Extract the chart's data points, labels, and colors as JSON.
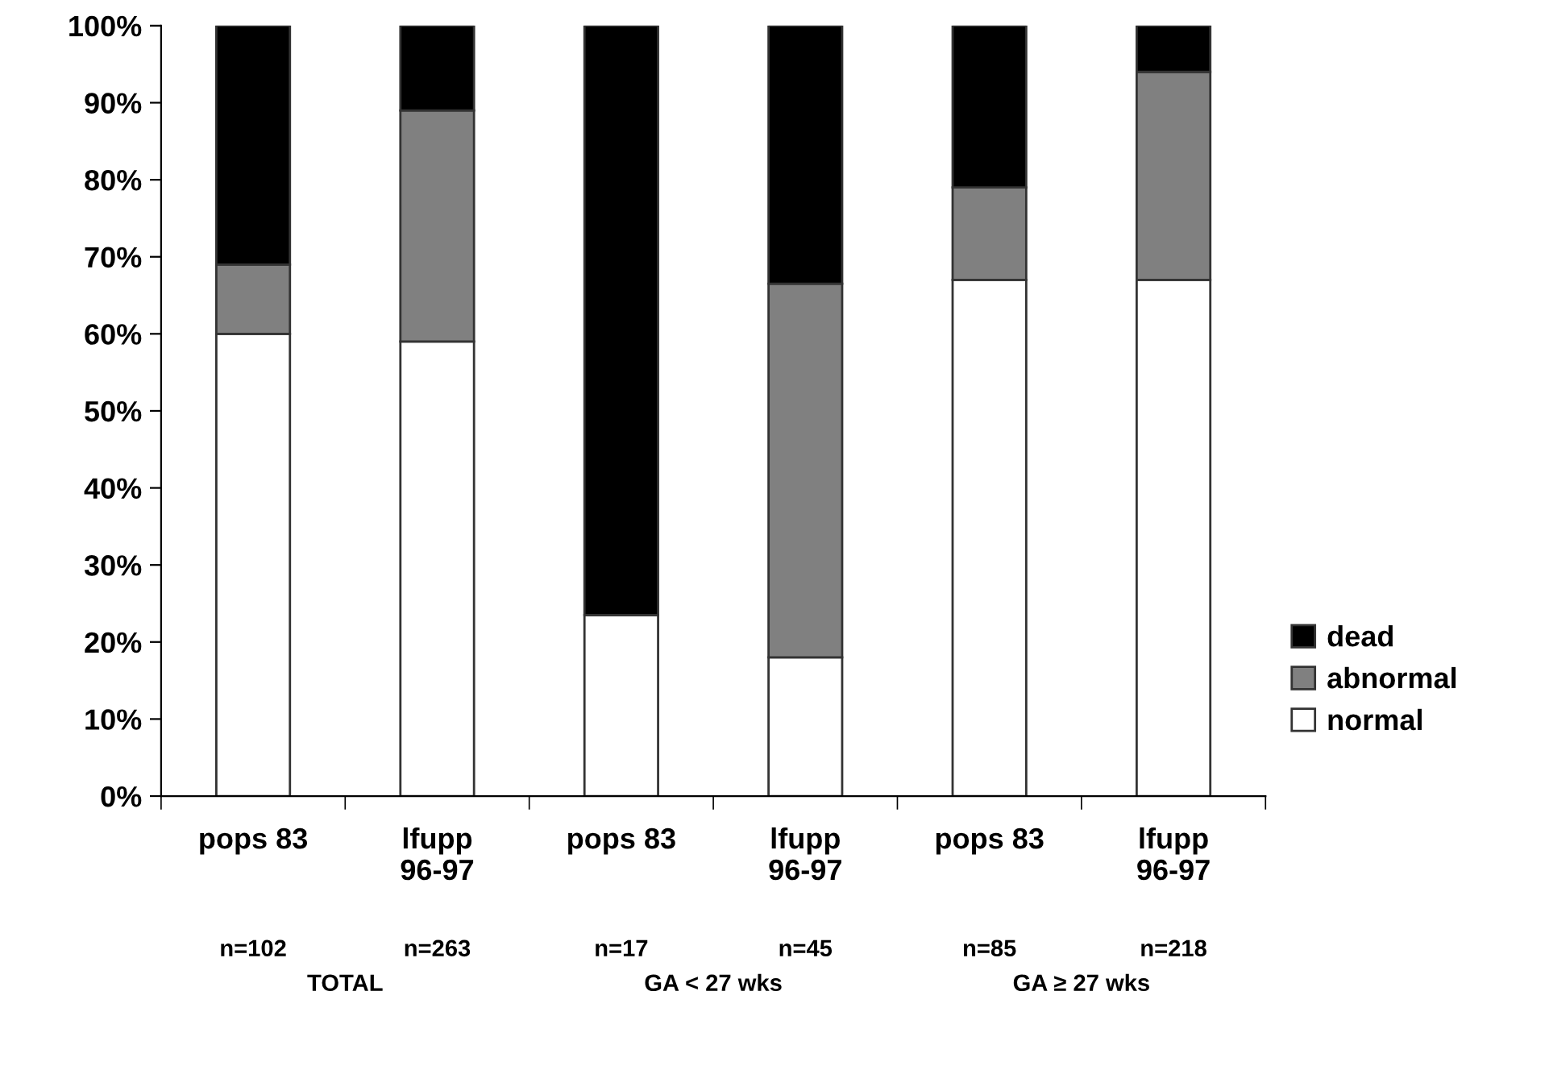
{
  "chart_data": {
    "type": "bar",
    "stacked": true,
    "categories": [
      "pops 83",
      "lfupp\n96-97",
      "pops 83",
      "lfupp\n96-97",
      "pops 83",
      "lfupp\n96-97"
    ],
    "series": [
      {
        "name": "normal",
        "color": "#ffffff",
        "values": [
          60,
          59,
          23.5,
          18,
          67,
          67
        ]
      },
      {
        "name": "abnormal",
        "color": "#808080",
        "values": [
          9,
          30,
          0,
          48.5,
          12,
          27
        ]
      },
      {
        "name": "dead",
        "color": "#000000",
        "values": [
          31,
          11,
          76.5,
          33.5,
          21,
          6
        ]
      }
    ],
    "ylim": [
      0,
      100
    ],
    "yticks": [
      {
        "value": 0,
        "label": "0%"
      },
      {
        "value": 10,
        "label": "10%"
      },
      {
        "value": 20,
        "label": "20%"
      },
      {
        "value": 30,
        "label": "30%"
      },
      {
        "value": 40,
        "label": "40%"
      },
      {
        "value": 50,
        "label": "50%"
      },
      {
        "value": 60,
        "label": "60%"
      },
      {
        "value": 70,
        "label": "70%"
      },
      {
        "value": 80,
        "label": "80%"
      },
      {
        "value": 90,
        "label": "90%"
      },
      {
        "value": 100,
        "label": "100%"
      }
    ],
    "grid": false,
    "legend": "right",
    "annotations": [
      "n=102",
      "n=263",
      "n=17",
      "n=45",
      "n=85",
      "n=218",
      "TOTAL",
      "GA < 27 wks",
      "GA ≥ 27 wks"
    ]
  }
}
